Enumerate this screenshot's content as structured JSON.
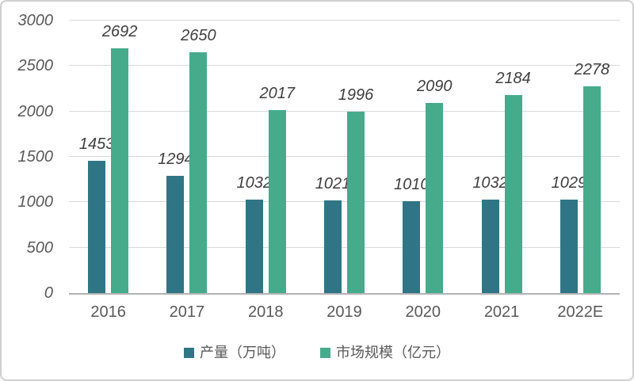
{
  "chart_data": {
    "type": "bar",
    "title": "",
    "xlabel": "",
    "ylabel": "",
    "categories": [
      "2016",
      "2017",
      "2018",
      "2019",
      "2020",
      "2021",
      "2022E"
    ],
    "series": [
      {
        "key": "production",
        "name": "产量（万吨）",
        "color": "#2f7586",
        "values": [
          1453,
          1294,
          1032,
          1021,
          1010,
          1032,
          1029
        ]
      },
      {
        "key": "market-size",
        "name": "市场规模（亿元）",
        "color": "#45ab8b",
        "values": [
          2692,
          2650,
          2017,
          1996,
          2090,
          2184,
          2278
        ]
      }
    ],
    "ylim": [
      0,
      3000
    ],
    "yticks": [
      0,
      500,
      1000,
      1500,
      2000,
      2500,
      3000
    ],
    "grid": true,
    "data_labels": true,
    "legend_position": "bottom"
  },
  "colors": {
    "background": "#ffffff",
    "frame_border": "#cfcfcf",
    "gridline": "#d9d9d9",
    "axis_line": "#b3b3b3",
    "tick_label": "#595959",
    "data_label": "#3f3f3f",
    "legend_label": "#595959"
  }
}
